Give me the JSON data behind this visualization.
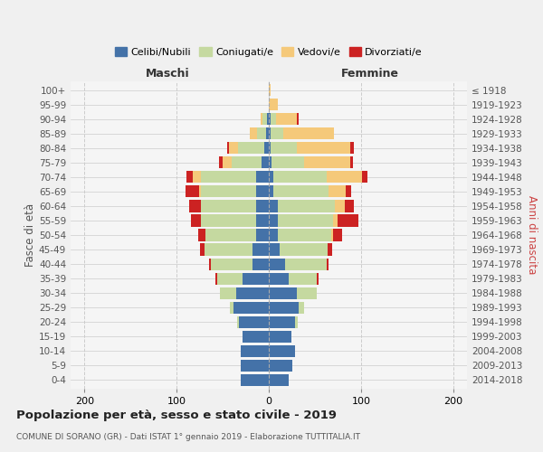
{
  "age_groups": [
    "100+",
    "95-99",
    "90-94",
    "85-89",
    "80-84",
    "75-79",
    "70-74",
    "65-69",
    "60-64",
    "55-59",
    "50-54",
    "45-49",
    "40-44",
    "35-39",
    "30-34",
    "25-29",
    "20-24",
    "15-19",
    "10-14",
    "5-9",
    "0-4"
  ],
  "birth_years": [
    "≤ 1918",
    "1919-1923",
    "1924-1928",
    "1929-1933",
    "1934-1938",
    "1939-1943",
    "1944-1948",
    "1949-1953",
    "1954-1958",
    "1959-1963",
    "1964-1968",
    "1969-1973",
    "1974-1978",
    "1979-1983",
    "1984-1988",
    "1989-1993",
    "1994-1998",
    "1999-2003",
    "2004-2008",
    "2009-2013",
    "2014-2018"
  ],
  "colors": {
    "celibi": "#4472a8",
    "coniugati": "#c5d9a0",
    "vedovi": "#f5c97a",
    "divorziati": "#cc2222"
  },
  "males": {
    "celibi": [
      0,
      0,
      2,
      3,
      5,
      8,
      14,
      14,
      14,
      14,
      14,
      18,
      18,
      28,
      35,
      38,
      32,
      28,
      30,
      30,
      30
    ],
    "coniugati": [
      0,
      0,
      5,
      10,
      28,
      32,
      60,
      60,
      60,
      60,
      55,
      52,
      45,
      28,
      18,
      4,
      2,
      0,
      0,
      0,
      0
    ],
    "vedovi": [
      0,
      0,
      2,
      8,
      10,
      10,
      8,
      2,
      0,
      0,
      0,
      0,
      0,
      0,
      0,
      0,
      0,
      0,
      0,
      0,
      0
    ],
    "divorziati": [
      0,
      0,
      0,
      0,
      2,
      4,
      7,
      14,
      12,
      10,
      8,
      5,
      2,
      2,
      0,
      0,
      0,
      0,
      0,
      0,
      0
    ]
  },
  "females": {
    "celibi": [
      0,
      0,
      2,
      2,
      2,
      3,
      5,
      5,
      10,
      10,
      10,
      12,
      18,
      22,
      30,
      32,
      28,
      25,
      28,
      26,
      22
    ],
    "coniugati": [
      0,
      0,
      6,
      14,
      28,
      35,
      58,
      60,
      62,
      60,
      58,
      52,
      45,
      30,
      22,
      6,
      3,
      0,
      0,
      0,
      0
    ],
    "vedovi": [
      2,
      10,
      22,
      55,
      58,
      50,
      38,
      18,
      10,
      5,
      2,
      0,
      0,
      0,
      0,
      0,
      0,
      0,
      0,
      0,
      0
    ],
    "divorziati": [
      0,
      0,
      2,
      0,
      4,
      3,
      6,
      6,
      10,
      22,
      10,
      5,
      2,
      2,
      0,
      0,
      0,
      0,
      0,
      0,
      0
    ]
  },
  "xlim": [
    -215,
    215
  ],
  "xticks": [
    -200,
    -100,
    0,
    100,
    200
  ],
  "xtick_labels": [
    "200",
    "100",
    "0",
    "100",
    "200"
  ],
  "title": "Popolazione per età, sesso e stato civile - 2019",
  "subtitle": "COMUNE DI SORANO (GR) - Dati ISTAT 1° gennaio 2019 - Elaborazione TUTTITALIA.IT",
  "ylabel_left": "Fasce di età",
  "ylabel_right": "Anni di nascita",
  "header_left": "Maschi",
  "header_right": "Femmine",
  "background_color": "#f0f0f0",
  "plot_background": "#f5f5f5",
  "bar_height": 0.82,
  "grid_color": "#cccccc",
  "legend_labels": [
    "Celibi/Nubili",
    "Coniugati/e",
    "Vedovi/e",
    "Divorziati/e"
  ]
}
